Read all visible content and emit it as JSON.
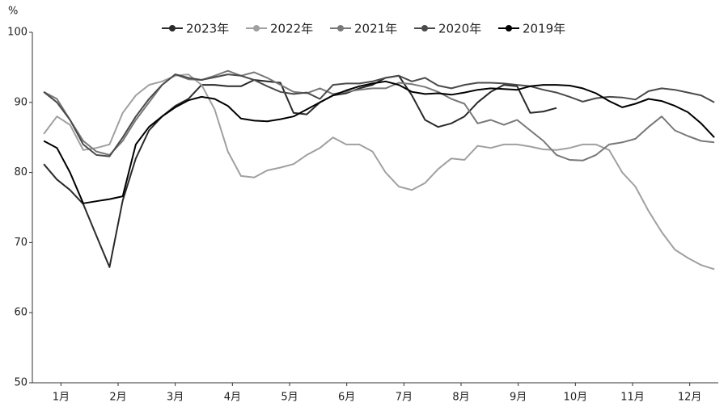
{
  "chart_data": {
    "type": "line",
    "y_label": "%",
    "x": [
      0.2,
      0.43,
      0.66,
      0.89,
      1.12,
      1.35,
      1.58,
      1.81,
      2.04,
      2.27,
      2.5,
      2.73,
      2.96,
      3.19,
      3.42,
      3.65,
      3.88,
      4.11,
      4.34,
      4.57,
      4.8,
      5.03,
      5.26,
      5.49,
      5.72,
      5.95,
      6.18,
      6.41,
      6.64,
      6.87,
      7.1,
      7.33,
      7.56,
      7.79,
      8.02,
      8.25,
      8.48,
      8.71,
      8.94,
      9.17,
      9.4,
      9.63,
      9.86,
      10.09,
      10.32,
      10.55,
      10.78,
      11.01,
      11.24,
      11.47,
      11.7,
      11.93
    ],
    "xlim": [
      0,
      12
    ],
    "xticks": [
      {
        "value": 0.5,
        "label": "1月"
      },
      {
        "value": 1.5,
        "label": "2月"
      },
      {
        "value": 2.5,
        "label": "3月"
      },
      {
        "value": 3.5,
        "label": "4月"
      },
      {
        "value": 4.5,
        "label": "5月"
      },
      {
        "value": 5.5,
        "label": "6月"
      },
      {
        "value": 6.5,
        "label": "7月"
      },
      {
        "value": 7.5,
        "label": "8月"
      },
      {
        "value": 8.5,
        "label": "9月"
      },
      {
        "value": 9.5,
        "label": "10月"
      },
      {
        "value": 10.5,
        "label": "11月"
      },
      {
        "value": 11.5,
        "label": "12月"
      }
    ],
    "ylim": [
      50,
      100
    ],
    "yticks": [
      50,
      60,
      70,
      80,
      90,
      100
    ],
    "grid": false,
    "legend": "top",
    "series": [
      {
        "name": "2023年",
        "color": "#2a2a2a",
        "values": [
          81.2,
          79,
          77.5,
          75.5,
          71,
          66.5,
          76,
          82,
          86,
          88,
          89.5,
          90.5,
          92.5,
          92.5,
          92.3,
          92.3,
          93.2,
          93,
          92.8,
          88.5,
          88.3,
          90,
          91,
          91.3,
          92,
          92.5,
          93.5,
          93.8,
          91,
          87.5,
          86.5,
          87,
          88,
          90,
          91.5,
          92.5,
          92.3,
          88.5,
          88.7,
          89.2,
          null,
          null,
          null,
          null,
          null,
          null,
          null,
          null,
          null,
          null,
          null,
          null
        ]
      },
      {
        "name": "2022年",
        "color": "#a0a0a0",
        "values": [
          85.5,
          88,
          86.8,
          83.2,
          83.5,
          84,
          88.5,
          91,
          92.5,
          93,
          93.8,
          94,
          92.5,
          89,
          83,
          79.5,
          79.3,
          80.3,
          80.7,
          81.2,
          82.5,
          83.5,
          85,
          84,
          84,
          83,
          80,
          78,
          77.5,
          78.5,
          80.5,
          82,
          81.8,
          83.8,
          83.5,
          84,
          84,
          83.7,
          83.3,
          83.2,
          83.5,
          84,
          84,
          83.2,
          80,
          78,
          74.5,
          71.5,
          69,
          67.8,
          66.8,
          66.2
        ]
      },
      {
        "name": "2021年",
        "color": "#787878",
        "values": [
          91.5,
          90.5,
          87.5,
          84.5,
          83,
          82.5,
          84.5,
          87.5,
          90,
          92.5,
          94,
          93.3,
          93.2,
          93.8,
          94.5,
          93.8,
          94.3,
          93.5,
          92.5,
          91.5,
          91.3,
          92,
          91.2,
          91.5,
          91.8,
          92,
          92,
          92.8,
          92.6,
          92.2,
          91.5,
          90.5,
          89.8,
          87,
          87.5,
          86.8,
          87.5,
          86,
          84.5,
          82.5,
          81.8,
          81.7,
          82.5,
          84,
          84.3,
          84.8,
          86.5,
          88,
          86,
          85.2,
          84.5,
          84.3
        ]
      },
      {
        "name": "2020年",
        "color": "#4a4a4a",
        "values": [
          91.5,
          90,
          87.5,
          84,
          82.5,
          82.3,
          85,
          88,
          90.5,
          92.5,
          94,
          93.5,
          93.2,
          93.6,
          94,
          93.8,
          93.2,
          92.3,
          91.5,
          91.2,
          91.4,
          90.5,
          92.5,
          92.7,
          92.7,
          93,
          93.5,
          93.8,
          93,
          93.5,
          92.4,
          92,
          92.5,
          92.8,
          92.8,
          92.7,
          92.5,
          92.3,
          91.8,
          91.4,
          90.8,
          90.1,
          90.6,
          90.8,
          90.7,
          90.4,
          91.6,
          92,
          91.8,
          91.4,
          91,
          90
        ]
      },
      {
        "name": "2019年",
        "color": "#000000",
        "values": [
          84.5,
          83.5,
          80,
          75.6,
          75.9,
          76.2,
          76.6,
          84,
          86.5,
          88,
          89.3,
          90.3,
          90.8,
          90.5,
          89.5,
          87.7,
          87.4,
          87.3,
          87.6,
          88,
          89,
          90,
          91,
          91.7,
          92.3,
          92.7,
          93,
          92.5,
          91.5,
          91.2,
          91.3,
          91.1,
          91.4,
          91.8,
          92,
          91.9,
          91.8,
          92.3,
          92.5,
          92.5,
          92.4,
          92,
          91.3,
          90.2,
          89.3,
          89.8,
          90.5,
          90.2,
          89.5,
          88.6,
          87,
          85
        ]
      }
    ]
  }
}
